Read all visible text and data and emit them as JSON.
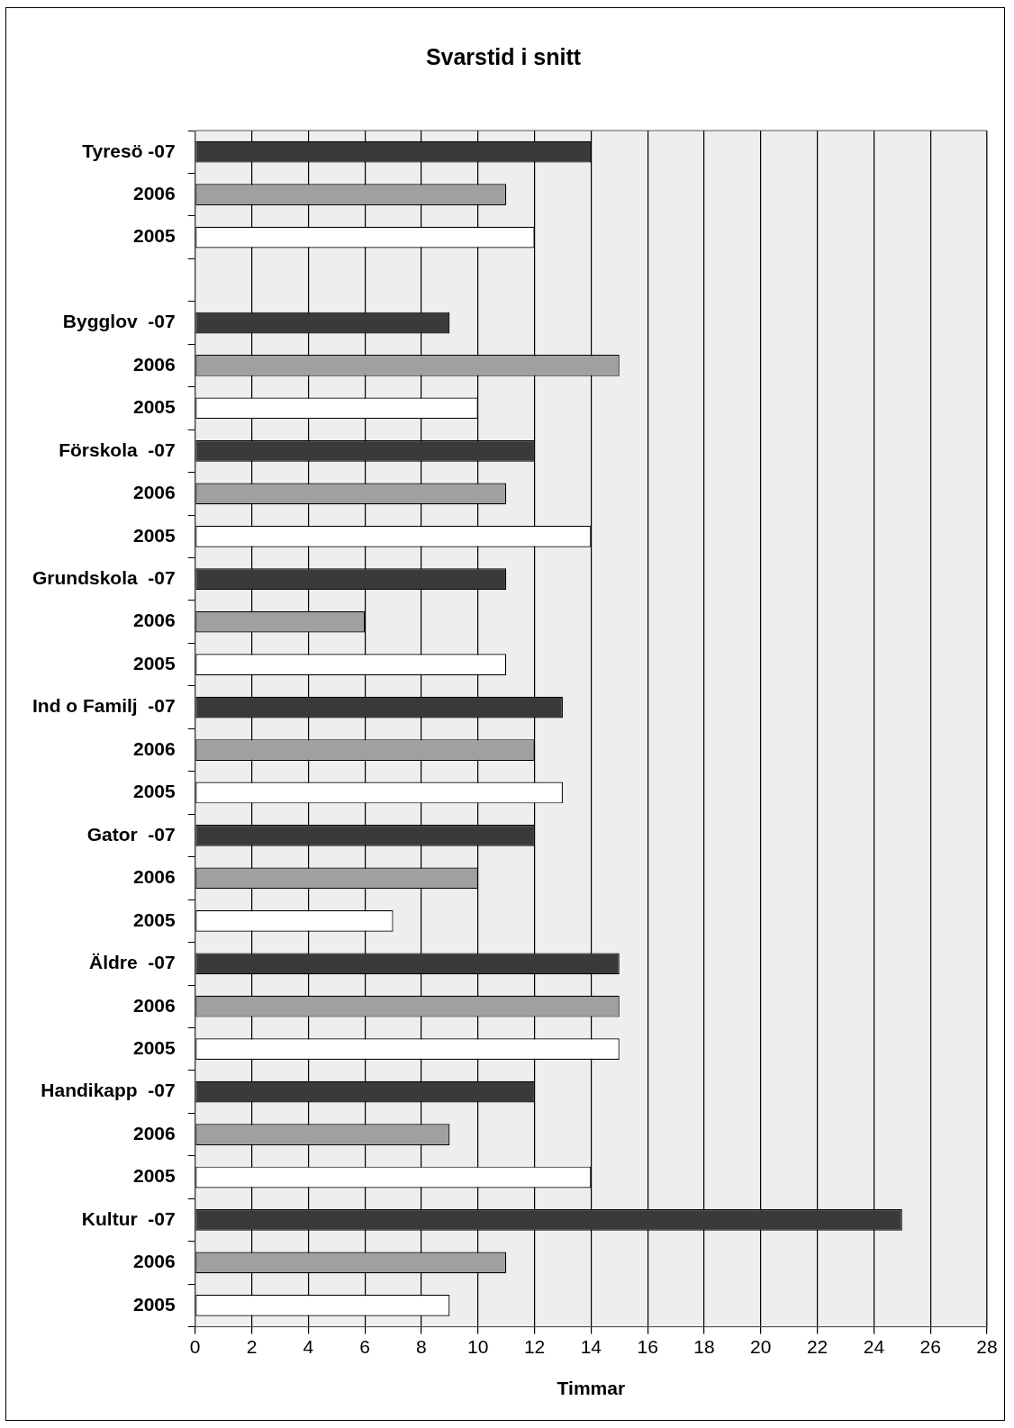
{
  "chart_data": {
    "type": "bar",
    "orientation": "horizontal",
    "title": "Svarstid i snitt",
    "xlabel": "Timmar",
    "categories": [
      "Tyresö -07",
      "2006",
      "2005",
      null,
      "Bygglov  -07",
      "2006",
      "2005",
      "Förskola  -07",
      "2006",
      "2005",
      "Grundskola  -07",
      "2006",
      "2005",
      "Ind o Familj  -07",
      "2006",
      "2005",
      "Gator  -07",
      "2006",
      "2005",
      "Äldre  -07",
      "2006",
      "2005",
      "Handikapp  -07",
      "2006",
      "2005",
      "Kultur  -07",
      "2006",
      "2005"
    ],
    "values": [
      14,
      11,
      12,
      null,
      9,
      15,
      10,
      12,
      11,
      14,
      11,
      6,
      11,
      13,
      12,
      13,
      12,
      10,
      7,
      15,
      15,
      15,
      12,
      9,
      14,
      25,
      11,
      9
    ],
    "colors": [
      "#3a3a3a",
      "#a0a0a0",
      "#ffffff",
      "#ffffff",
      "#3a3a3a",
      "#a0a0a0",
      "#ffffff",
      "#3a3a3a",
      "#a0a0a0",
      "#ffffff",
      "#3a3a3a",
      "#a0a0a0",
      "#ffffff",
      "#3a3a3a",
      "#a0a0a0",
      "#ffffff",
      "#3a3a3a",
      "#a0a0a0",
      "#ffffff",
      "#3a3a3a",
      "#a0a0a0",
      "#ffffff",
      "#3a3a3a",
      "#a0a0a0",
      "#ffffff",
      "#3a3a3a",
      "#a0a0a0",
      "#ffffff"
    ],
    "xlim": [
      0,
      28
    ],
    "xticks": [
      0,
      2,
      4,
      6,
      8,
      10,
      12,
      14,
      16,
      18,
      20,
      22,
      24,
      26,
      28
    ],
    "grid": "x",
    "legend": false
  }
}
